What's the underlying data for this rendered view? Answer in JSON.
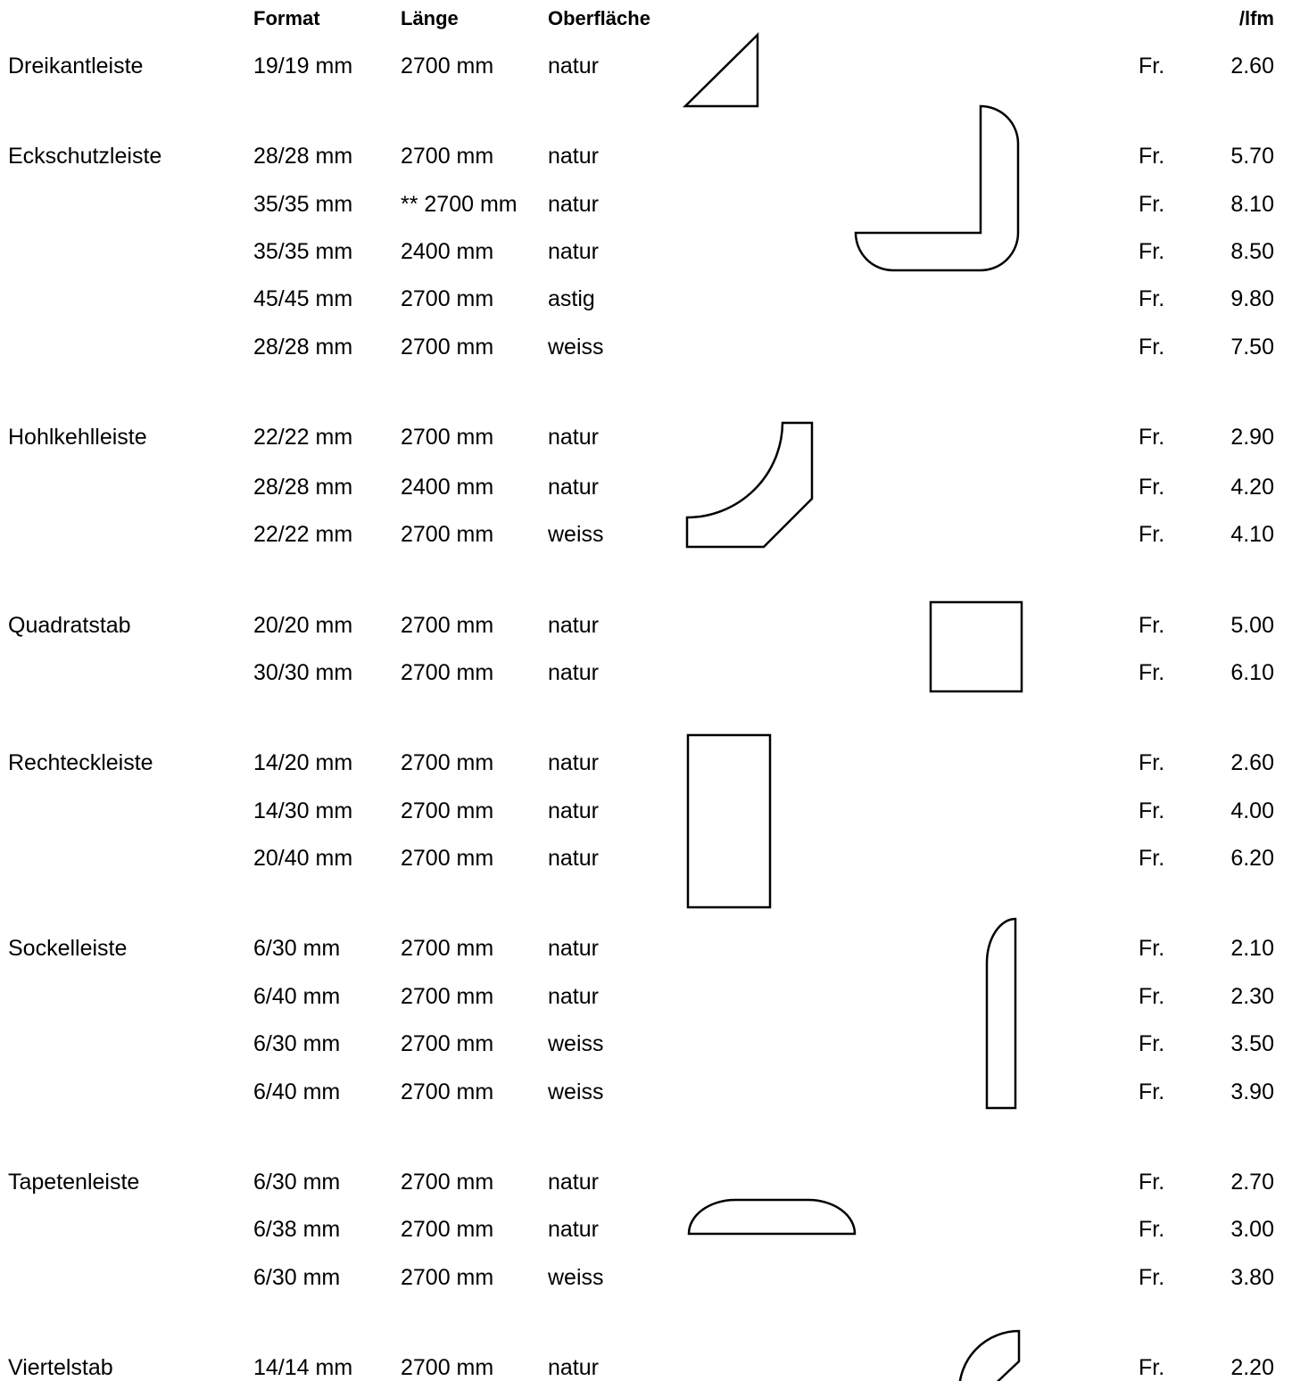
{
  "header": {
    "format": "Format",
    "laenge": "Länge",
    "oberflaeche": "Oberfläche",
    "unit": "/lfm"
  },
  "rows": [
    {
      "name": "Dreikantleiste",
      "format": "19/19 mm",
      "length": "2700 mm",
      "surface": "natur",
      "currency": "Fr.",
      "price": "2.60"
    },
    {
      "name": "Eckschutzleiste",
      "format": "28/28 mm",
      "length": "2700 mm",
      "surface": "natur",
      "currency": "Fr.",
      "price": "5.70"
    },
    {
      "name": "",
      "format": "35/35 mm",
      "length": "** 2700 mm",
      "surface": "natur",
      "currency": "Fr.",
      "price": "8.10"
    },
    {
      "name": "",
      "format": "35/35 mm",
      "length": "2400 mm",
      "surface": "natur",
      "currency": "Fr.",
      "price": "8.50"
    },
    {
      "name": "",
      "format": "45/45 mm",
      "length": "2700 mm",
      "surface": "astig",
      "currency": "Fr.",
      "price": "9.80"
    },
    {
      "name": "",
      "format": "28/28 mm",
      "length": "2700 mm",
      "surface": "weiss",
      "currency": "Fr.",
      "price": "7.50"
    },
    {
      "name": "Hohlkehlleiste",
      "format": "22/22 mm",
      "length": "2700 mm",
      "surface": "natur",
      "currency": "Fr.",
      "price": "2.90"
    },
    {
      "name": "",
      "format": "28/28 mm",
      "length": "2400 mm",
      "surface": "natur",
      "currency": "Fr.",
      "price": "4.20"
    },
    {
      "name": "",
      "format": "22/22 mm",
      "length": "2700 mm",
      "surface": "weiss",
      "currency": "Fr.",
      "price": "4.10"
    },
    {
      "name": "Quadratstab",
      "format": "20/20 mm",
      "length": "2700 mm",
      "surface": "natur",
      "currency": "Fr.",
      "price": "5.00"
    },
    {
      "name": "",
      "format": "30/30 mm",
      "length": "2700 mm",
      "surface": "natur",
      "currency": "Fr.",
      "price": "6.10"
    },
    {
      "name": "Rechteckleiste",
      "format": "14/20 mm",
      "length": "2700 mm",
      "surface": "natur",
      "currency": "Fr.",
      "price": "2.60"
    },
    {
      "name": "",
      "format": "14/30 mm",
      "length": "2700 mm",
      "surface": "natur",
      "currency": "Fr.",
      "price": "4.00"
    },
    {
      "name": "",
      "format": "20/40 mm",
      "length": "2700 mm",
      "surface": "natur",
      "currency": "Fr.",
      "price": "6.20"
    },
    {
      "name": "Sockelleiste",
      "format": "6/30 mm",
      "length": "2700 mm",
      "surface": "natur",
      "currency": "Fr.",
      "price": "2.10"
    },
    {
      "name": "",
      "format": "6/40 mm",
      "length": "2700 mm",
      "surface": "natur",
      "currency": "Fr.",
      "price": "2.30"
    },
    {
      "name": "",
      "format": "6/30 mm",
      "length": "2700 mm",
      "surface": "weiss",
      "currency": "Fr.",
      "price": "3.50"
    },
    {
      "name": "",
      "format": "6/40 mm",
      "length": "2700 mm",
      "surface": "weiss",
      "currency": "Fr.",
      "price": "3.90"
    },
    {
      "name": "Tapetenleiste",
      "format": "6/30 mm",
      "length": "2700 mm",
      "surface": "natur",
      "currency": "Fr.",
      "price": "2.70"
    },
    {
      "name": "",
      "format": "6/38 mm",
      "length": "2700 mm",
      "surface": "natur",
      "currency": "Fr.",
      "price": "3.00"
    },
    {
      "name": "",
      "format": "6/30 mm",
      "length": "2700 mm",
      "surface": "weiss",
      "currency": "Fr.",
      "price": "3.80"
    },
    {
      "name": "Viertelstab",
      "format": "14/14 mm",
      "length": "2700 mm",
      "surface": "natur",
      "currency": "Fr.",
      "price": "2.20"
    }
  ],
  "profiles": [
    "dreikant-profile-icon",
    "eckschutz-profile-icon",
    "hohlkehl-profile-icon",
    "quadrat-profile-icon",
    "rechteck-profile-icon",
    "sockel-profile-icon",
    "tapeten-profile-icon",
    "viertelstab-profile-icon"
  ]
}
